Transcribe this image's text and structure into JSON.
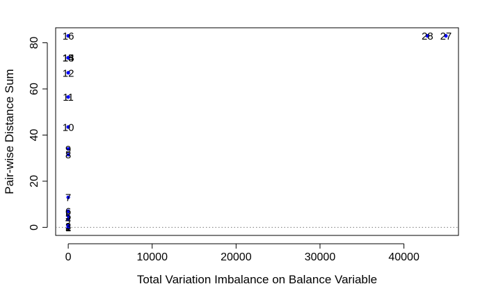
{
  "chart_data": {
    "type": "scatter",
    "title": "",
    "xlabel": "Total Variation Imbalance on Balance Variable",
    "ylabel": "Pair-wise Distance Sum",
    "xlim": [
      -1500,
      46500
    ],
    "ylim": [
      -3.5,
      86.5
    ],
    "xticks": [
      0,
      10000,
      20000,
      30000,
      40000
    ],
    "yticks": [
      0,
      20,
      40,
      60,
      80
    ],
    "grid": false,
    "reference_lines": [
      {
        "axis": "y",
        "value": 0,
        "style": "dotted"
      }
    ],
    "point_color": "#0000ff",
    "points": [
      {
        "label": "1",
        "x": 0,
        "y": 0
      },
      {
        "label": "2",
        "x": 0,
        "y": 0.3
      },
      {
        "label": "3",
        "x": 0,
        "y": 0.6
      },
      {
        "label": "4",
        "x": 0,
        "y": 3.5
      },
      {
        "label": "5",
        "x": 0,
        "y": 5
      },
      {
        "label": "6",
        "x": 0,
        "y": 7
      },
      {
        "label": "7",
        "x": 0,
        "y": 13
      },
      {
        "label": "8",
        "x": 0,
        "y": 31.5
      },
      {
        "label": "9",
        "x": 0,
        "y": 34
      },
      {
        "label": "10",
        "x": 0,
        "y": 43.5
      },
      {
        "label": "11",
        "x": 0,
        "y": 56.5
      },
      {
        "label": "12",
        "x": 0,
        "y": 67
      },
      {
        "label": "13",
        "x": 0,
        "y": 73.5
      },
      {
        "label": "14",
        "x": 0,
        "y": 73.5
      },
      {
        "label": "15",
        "x": 0,
        "y": 73.5
      },
      {
        "label": "16",
        "x": 0,
        "y": 83
      },
      {
        "label": "28",
        "x": 42800,
        "y": 83
      },
      {
        "label": "27",
        "x": 45000,
        "y": 83
      }
    ]
  }
}
